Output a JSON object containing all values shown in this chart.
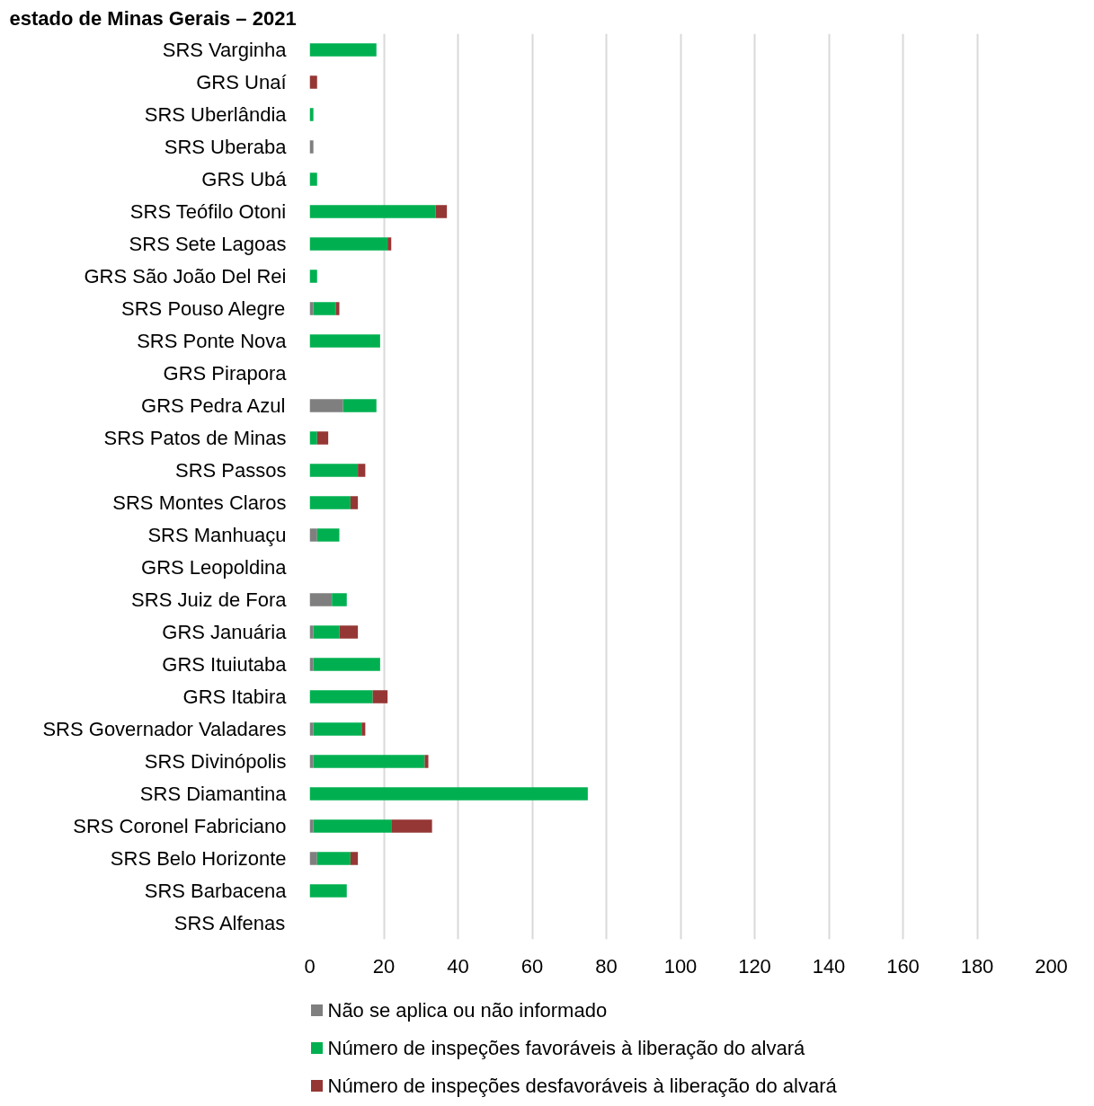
{
  "chart_data": {
    "type": "bar",
    "orientation": "horizontal",
    "stacked": true,
    "title": "estado de Minas Gerais – 2021",
    "categories": [
      "SRS Varginha",
      "GRS Unaí",
      "SRS Uberlândia",
      "SRS Uberaba",
      "GRS Ubá",
      "SRS Teófilo Otoni",
      "SRS Sete Lagoas",
      "GRS São João Del Rei",
      "SRS Pouso Alegre",
      "SRS Ponte Nova",
      "GRS Pirapora",
      "GRS Pedra Azul",
      "SRS Patos de Minas",
      "SRS Passos",
      "SRS Montes Claros",
      "SRS Manhuaçu",
      "GRS Leopoldina",
      "SRS Juiz de Fora",
      "GRS Januária",
      "GRS Ituiutaba",
      "GRS Itabira",
      "SRS Governador Valadares",
      "SRS Divinópolis",
      "SRS Diamantina",
      "SRS Coronel Fabriciano",
      "SRS Belo Horizonte",
      "SRS Barbacena",
      "SRS Alfenas"
    ],
    "series": [
      {
        "name": "Não se aplica ou não informado",
        "color": "#7f7f7f",
        "values": [
          null,
          null,
          null,
          1,
          null,
          null,
          null,
          null,
          1,
          null,
          null,
          9,
          null,
          null,
          null,
          2,
          null,
          6,
          1,
          1,
          null,
          1,
          1,
          null,
          1,
          2,
          null,
          null
        ]
      },
      {
        "name": "Número de inspeções favoráveis à liberação do alvará",
        "color": "#00b050",
        "values": [
          18,
          null,
          1,
          null,
          2,
          34,
          21,
          2,
          6,
          19,
          null,
          9,
          2,
          13,
          11,
          6,
          null,
          4,
          7,
          18,
          17,
          13,
          30,
          75,
          21,
          9,
          10,
          null
        ]
      },
      {
        "name": "Número de inspeções desfavoráveis à liberação do alvará",
        "color": "#953735",
        "values": [
          null,
          2,
          null,
          null,
          null,
          3,
          1,
          null,
          1,
          null,
          null,
          null,
          3,
          2,
          2,
          null,
          null,
          null,
          5,
          null,
          4,
          1,
          1,
          null,
          11,
          2,
          null,
          null
        ]
      }
    ],
    "xlim": [
      0,
      200
    ],
    "xticks": [
      0,
      20,
      40,
      60,
      80,
      100,
      120,
      140,
      160,
      180,
      200
    ],
    "grid": "x",
    "legend": "bottom"
  }
}
